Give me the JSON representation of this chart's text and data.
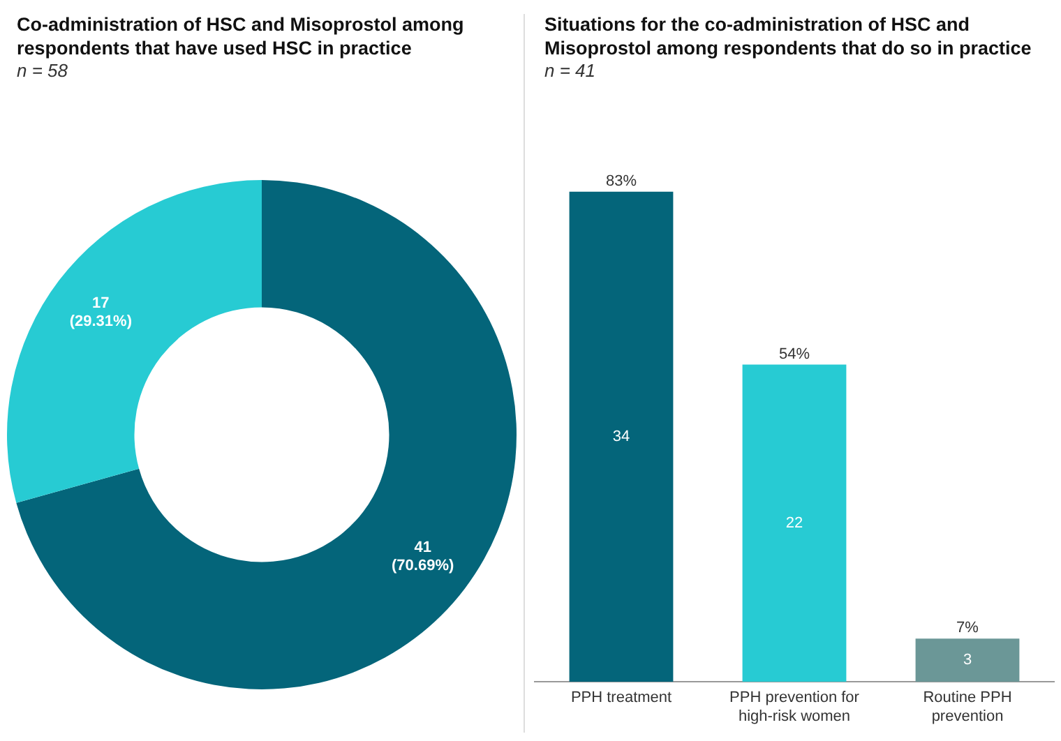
{
  "chart_data": [
    {
      "type": "donut",
      "title": "Co-administration of HSC and Misoprostol among respondents that have used HSC in practice",
      "subtitle": "n = 58",
      "categories": [
        null,
        null
      ],
      "values": [
        41,
        17
      ],
      "colors": [
        "#04657a",
        "#27cbd3"
      ],
      "value_labels": [
        "41\n(70.69%)",
        "17\n(29.31%)"
      ]
    },
    {
      "type": "bar",
      "title": "Situations for the co-administration of HSC and Misoprostol among respondents that do so in practice",
      "subtitle": "n = 41",
      "categories": [
        "PPH treatment",
        "PPH prevention for high-risk women",
        "Routine PPH prevention"
      ],
      "values": [
        34,
        22,
        3
      ],
      "colors": [
        "#04657a",
        "#27cbd3",
        "#6b9797"
      ],
      "data_labels": true,
      "annotations": [
        {
          "text": "83%",
          "x": "PPH treatment",
          "y": 34
        },
        {
          "text": "54%",
          "x": "PPH prevention for high-risk women",
          "y": 22
        },
        {
          "text": "7%",
          "x": "Routine PPH prevention",
          "y": 3
        }
      ]
    }
  ]
}
